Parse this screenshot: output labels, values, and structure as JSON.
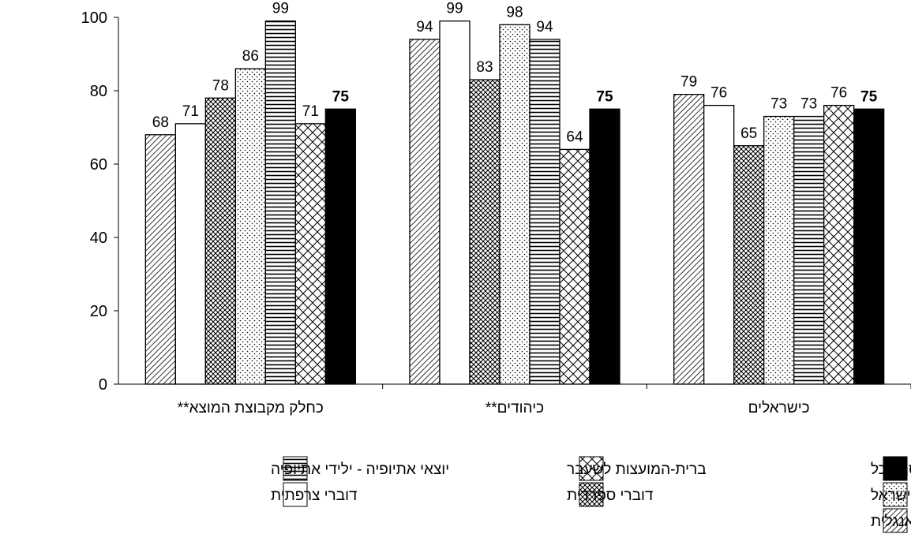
{
  "chart_data": {
    "type": "bar",
    "categories": [
      "כחלק מקבוצת המוצא**",
      "כיהודים**",
      "כישראלים"
    ],
    "ylim": [
      0,
      100
    ],
    "yticks": [
      0,
      20,
      40,
      60,
      80,
      100
    ],
    "grid": false,
    "legend_position": "bottom",
    "series": [
      {
        "name": "דוברי אנגלית",
        "pattern": "diag-dense",
        "values": [
          68,
          94,
          79
        ]
      },
      {
        "name": "דוברי צרפתית",
        "pattern": "white",
        "values": [
          71,
          99,
          76
        ]
      },
      {
        "name": "דוברי ספרדית",
        "pattern": "weave",
        "values": [
          78,
          83,
          65
        ]
      },
      {
        "name": "יוצאי אתיופיה - ילידי ישראל",
        "pattern": "dots",
        "values": [
          86,
          98,
          73
        ]
      },
      {
        "name": "יוצאי אתיופיה - ילידי אתיופיה",
        "pattern": "horizontal",
        "values": [
          99,
          94,
          73
        ]
      },
      {
        "name": "ברית-המועצות לשעבר",
        "pattern": "diamond",
        "values": [
          71,
          64,
          76
        ]
      },
      {
        "name": "סך-הכל",
        "pattern": "black",
        "values": [
          75,
          75,
          75
        ]
      }
    ]
  }
}
